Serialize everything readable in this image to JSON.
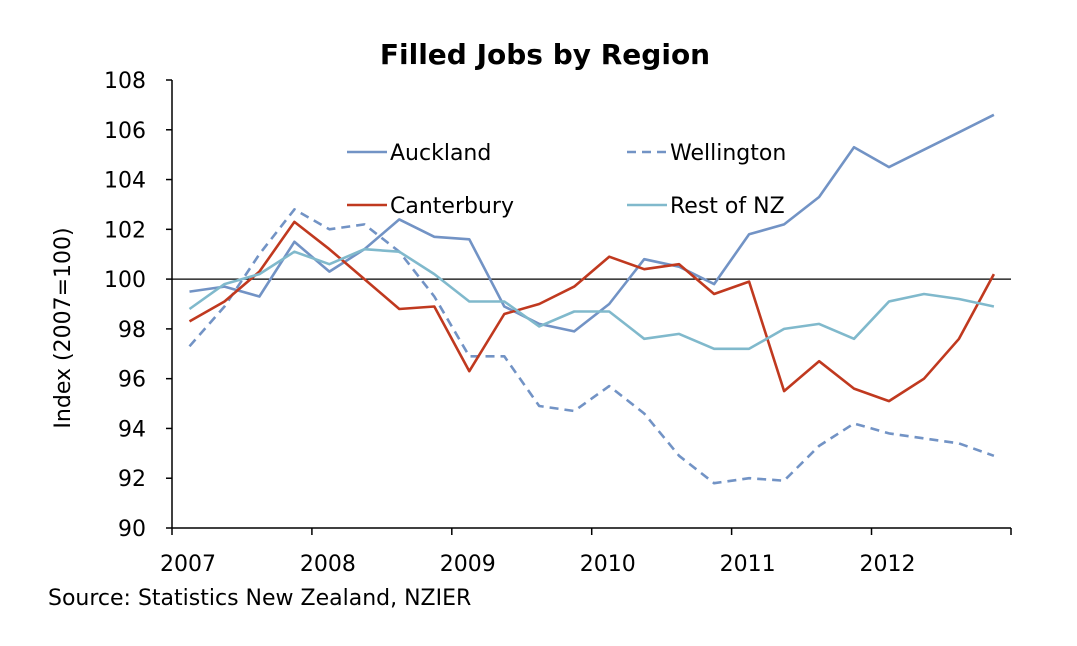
{
  "chart_data": {
    "type": "line",
    "title": "Filled Jobs by Region",
    "ylabel": "Index (2007=100)",
    "xlabel": "",
    "ylim": [
      90,
      108
    ],
    "yticks": [
      90,
      92,
      94,
      96,
      98,
      100,
      102,
      104,
      106,
      108
    ],
    "xlim": [
      2007,
      2012.997
    ],
    "xticks": [
      "2007",
      "2008",
      "2009",
      "2010",
      "2011",
      "2012"
    ],
    "reference_line": 100,
    "grid": false,
    "legend_position": "top-right",
    "source": "Source: Statistics New Zealand, NZIER",
    "x": [
      2007.125,
      2007.375,
      2007.625,
      2007.875,
      2008.125,
      2008.375,
      2008.625,
      2008.875,
      2009.125,
      2009.375,
      2009.625,
      2009.875,
      2010.125,
      2010.375,
      2010.625,
      2010.875,
      2011.125,
      2011.375,
      2011.625,
      2011.875,
      2012.125,
      2012.375,
      2012.625,
      2012.875
    ],
    "series": [
      {
        "name": "Auckland",
        "color": "#7293c5",
        "style": "solid",
        "values": [
          99.5,
          99.7,
          99.3,
          101.5,
          100.3,
          101.2,
          102.4,
          101.7,
          101.6,
          98.9,
          98.2,
          97.9,
          99.0,
          100.8,
          100.5,
          99.8,
          101.8,
          102.2,
          103.3,
          105.3,
          104.5,
          105.2,
          105.9,
          106.6
        ]
      },
      {
        "name": "Wellington",
        "color": "#7293c5",
        "style": "dashed",
        "values": [
          97.3,
          98.9,
          101.0,
          102.8,
          102.0,
          102.2,
          101.1,
          99.3,
          96.9,
          96.9,
          94.9,
          94.7,
          95.7,
          94.6,
          92.9,
          91.8,
          92.0,
          91.9,
          93.3,
          94.2,
          93.8,
          93.6,
          93.4,
          92.9
        ]
      },
      {
        "name": "Canterbury",
        "color": "#c0391f",
        "style": "solid",
        "values": [
          98.3,
          99.1,
          100.3,
          102.3,
          101.2,
          100.0,
          98.8,
          98.9,
          96.3,
          98.6,
          99.0,
          99.7,
          100.9,
          100.4,
          100.6,
          99.4,
          99.9,
          95.5,
          96.7,
          95.6,
          95.1,
          96.0,
          97.6,
          100.2
        ]
      },
      {
        "name": "Rest of NZ",
        "color": "#80b9cc",
        "style": "solid",
        "values": [
          98.8,
          99.8,
          100.2,
          101.1,
          100.6,
          101.2,
          101.1,
          100.2,
          99.1,
          99.1,
          98.1,
          98.7,
          98.7,
          97.6,
          97.8,
          97.2,
          97.2,
          98.0,
          98.2,
          97.6,
          99.1,
          99.4,
          99.2,
          98.9
        ]
      }
    ]
  }
}
